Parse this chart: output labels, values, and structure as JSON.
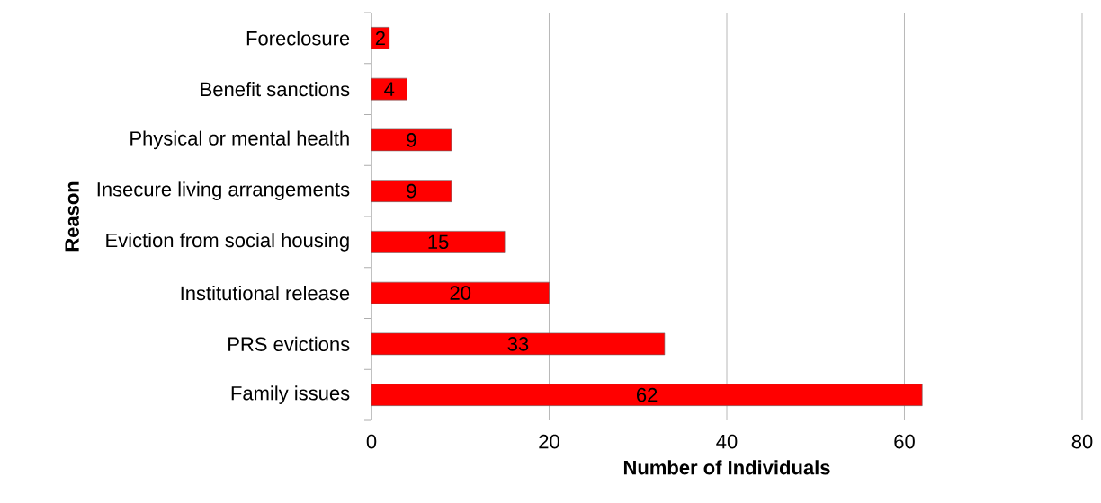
{
  "chart_data": {
    "type": "bar",
    "orientation": "horizontal",
    "xlabel": "Number of Individuals",
    "ylabel": "Reason",
    "categories": [
      "Foreclosure",
      "Benefit sanctions",
      "Physical or mental health",
      "Insecure living arrangements",
      "Eviction from social housing",
      "Institutional release",
      "PRS evictions",
      "Family issues"
    ],
    "values": [
      2,
      4,
      9,
      9,
      15,
      20,
      33,
      62
    ],
    "color": "#ff0000",
    "xlim": [
      0,
      80
    ],
    "xticks": [
      0,
      20,
      40,
      60,
      80
    ],
    "grid": "x",
    "data_labels": true
  }
}
